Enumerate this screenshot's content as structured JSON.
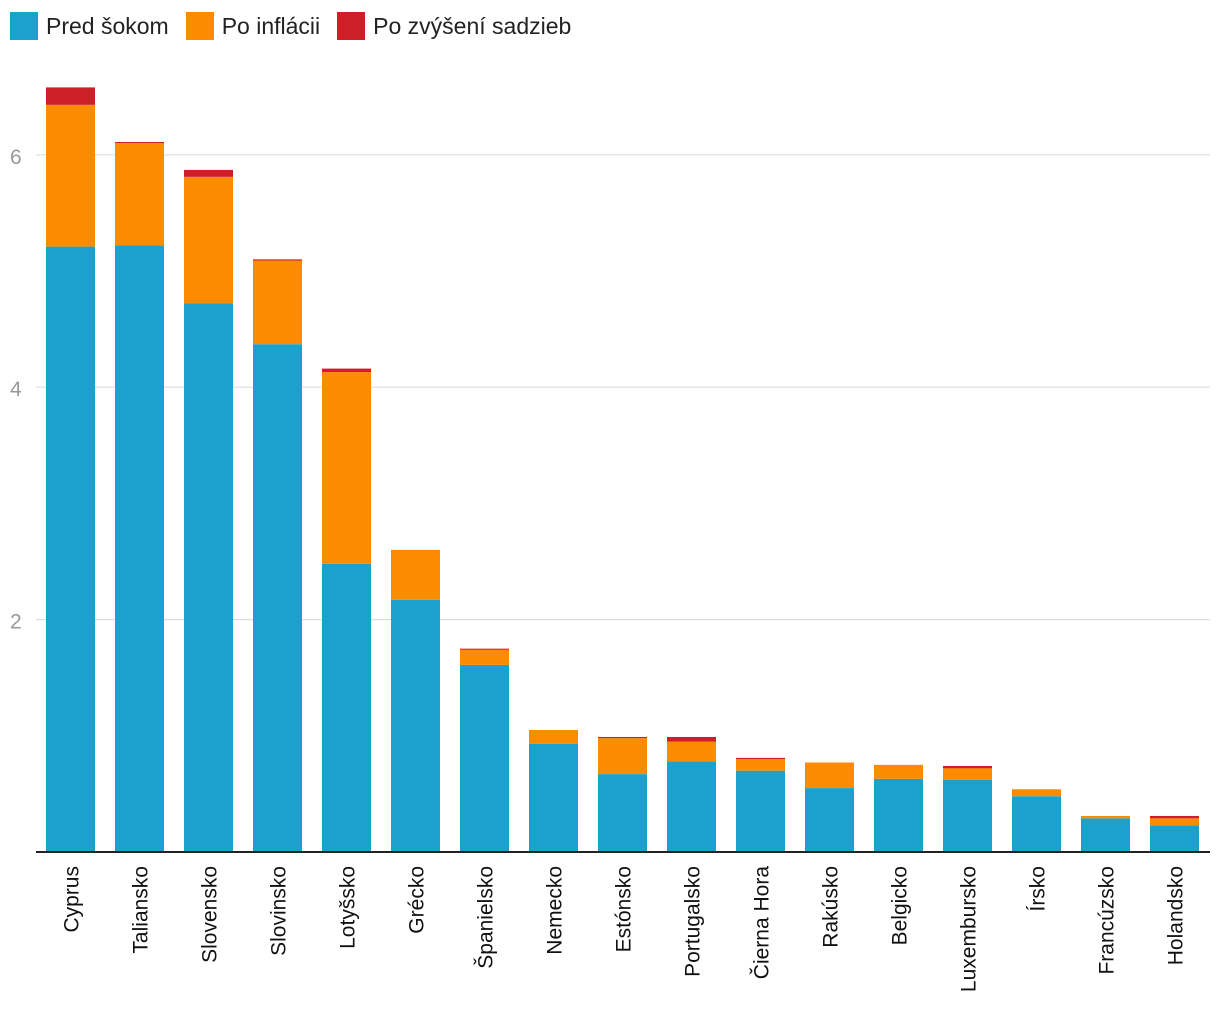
{
  "chart_data": {
    "type": "bar",
    "stacked": true,
    "title": "",
    "xlabel": "",
    "ylabel": "",
    "ylim": [
      0,
      6.5
    ],
    "yticks": [
      2,
      4,
      6
    ],
    "legend_position": "top-left",
    "grid": true,
    "categories": [
      "Cyprus",
      "Taliansko",
      "Slovensko",
      "Slovinsko",
      "Lotyšsko",
      "Grécko",
      "Španielsko",
      "Nemecko",
      "Estónsko",
      "Portugalsko",
      "Čierna Hora",
      "Rakúsko",
      "Belgicko",
      "Luxembursko",
      "Írsko",
      "Francúzsko",
      "Holandsko"
    ],
    "series": [
      {
        "name": "Pred šokom",
        "color": "#1ba1cd",
        "values": [
          5.21,
          5.22,
          4.72,
          4.37,
          2.48,
          2.17,
          1.61,
          0.93,
          0.67,
          0.78,
          0.7,
          0.55,
          0.63,
          0.62,
          0.48,
          0.29,
          0.23
        ]
      },
      {
        "name": "Po inflácii",
        "color": "#fb8c00",
        "values": [
          1.22,
          0.88,
          1.09,
          0.72,
          1.65,
          0.43,
          0.13,
          0.12,
          0.31,
          0.17,
          0.1,
          0.22,
          0.12,
          0.1,
          0.06,
          0.02,
          0.06
        ]
      },
      {
        "name": "Po zvýšení sadzieb",
        "color": "#cc2029",
        "values": [
          0.15,
          0.01,
          0.06,
          0.01,
          0.03,
          0.0,
          0.01,
          0.0,
          0.01,
          0.04,
          0.01,
          0.0,
          0.0,
          0.02,
          0.0,
          0.0,
          0.02
        ]
      }
    ]
  }
}
